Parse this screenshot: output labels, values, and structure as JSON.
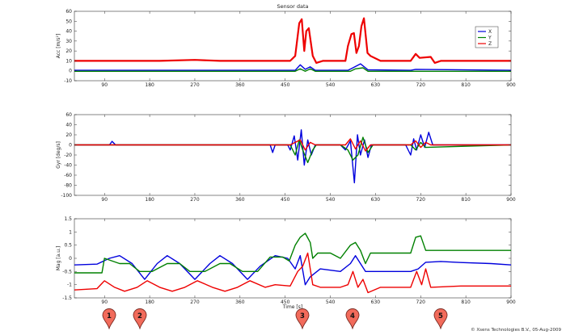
{
  "title": "Sensor data",
  "copyright": "© Xsens Technologies B.V., 05-Aug-2009",
  "xaxis": {
    "label": "Time [s]",
    "range": [
      30,
      900
    ],
    "ticks": [
      90,
      180,
      270,
      360,
      450,
      540,
      630,
      720,
      810,
      900
    ]
  },
  "colors": {
    "x": "#0000dd",
    "y": "#008000",
    "z": "#ee0000",
    "marker": "#f26b5b"
  },
  "legend": {
    "entries": [
      "X",
      "Y",
      "Z"
    ],
    "placement": "top-right"
  },
  "markers": [
    {
      "label": "1",
      "time": 100
    },
    {
      "label": "2",
      "time": 160
    },
    {
      "label": "3",
      "time": 485
    },
    {
      "label": "4",
      "time": 585
    },
    {
      "label": "5",
      "time": 760
    }
  ],
  "chart_data": [
    {
      "type": "line",
      "ylabel": "Acc [m/s²]",
      "ylim": [
        -10,
        60
      ],
      "yticks": [
        -10,
        0,
        10,
        20,
        30,
        40,
        50,
        60
      ],
      "grid": false,
      "series": [
        {
          "name": "X",
          "points": [
            [
              30,
              0.5
            ],
            [
              470,
              0.5
            ],
            [
              480,
              6
            ],
            [
              490,
              1.5
            ],
            [
              500,
              4
            ],
            [
              510,
              0.5
            ],
            [
              575,
              0.5
            ],
            [
              585,
              3
            ],
            [
              600,
              7
            ],
            [
              615,
              1
            ],
            [
              700,
              0.5
            ],
            [
              710,
              1.5
            ],
            [
              900,
              0.5
            ]
          ]
        },
        {
          "name": "Y",
          "points": [
            [
              30,
              -0.5
            ],
            [
              470,
              -0.5
            ],
            [
              480,
              2
            ],
            [
              490,
              -0.5
            ],
            [
              500,
              2
            ],
            [
              510,
              -0.5
            ],
            [
              580,
              -0.5
            ],
            [
              590,
              2
            ],
            [
              605,
              3
            ],
            [
              615,
              -0.5
            ],
            [
              900,
              -0.5
            ]
          ]
        },
        {
          "name": "Z",
          "points": [
            [
              30,
              10
            ],
            [
              200,
              10
            ],
            [
              270,
              11
            ],
            [
              320,
              10
            ],
            [
              460,
              10
            ],
            [
              470,
              15
            ],
            [
              478,
              48
            ],
            [
              483,
              52
            ],
            [
              488,
              20
            ],
            [
              492,
              40
            ],
            [
              497,
              43
            ],
            [
              505,
              15
            ],
            [
              512,
              8
            ],
            [
              525,
              10
            ],
            [
              570,
              10
            ],
            [
              575,
              25
            ],
            [
              582,
              37
            ],
            [
              587,
              38
            ],
            [
              592,
              18
            ],
            [
              597,
              25
            ],
            [
              602,
              45
            ],
            [
              607,
              53
            ],
            [
              614,
              18
            ],
            [
              620,
              15
            ],
            [
              640,
              10
            ],
            [
              700,
              10
            ],
            [
              710,
              17
            ],
            [
              718,
              13
            ],
            [
              740,
              14
            ],
            [
              748,
              8
            ],
            [
              760,
              10
            ],
            [
              900,
              10
            ]
          ]
        }
      ]
    },
    {
      "type": "line",
      "ylabel": "Gyr [deg/s]",
      "ylim": [
        -100,
        60
      ],
      "yticks": [
        -100,
        -80,
        -60,
        -40,
        -20,
        0,
        20,
        40,
        60
      ],
      "grid": false,
      "series": [
        {
          "name": "X",
          "points": [
            [
              30,
              0
            ],
            [
              100,
              0
            ],
            [
              105,
              7
            ],
            [
              112,
              0
            ],
            [
              420,
              0
            ],
            [
              425,
              -15
            ],
            [
              430,
              0
            ],
            [
              455,
              0
            ],
            [
              460,
              -10
            ],
            [
              468,
              18
            ],
            [
              475,
              -30
            ],
            [
              482,
              30
            ],
            [
              488,
              -40
            ],
            [
              495,
              10
            ],
            [
              502,
              -20
            ],
            [
              510,
              0
            ],
            [
              560,
              0
            ],
            [
              570,
              -10
            ],
            [
              580,
              8
            ],
            [
              588,
              -75
            ],
            [
              594,
              20
            ],
            [
              600,
              -20
            ],
            [
              608,
              10
            ],
            [
              615,
              -25
            ],
            [
              622,
              0
            ],
            [
              690,
              0
            ],
            [
              700,
              -20
            ],
            [
              706,
              12
            ],
            [
              712,
              -10
            ],
            [
              720,
              20
            ],
            [
              728,
              -5
            ],
            [
              736,
              25
            ],
            [
              744,
              0
            ],
            [
              900,
              0
            ]
          ]
        },
        {
          "name": "Y",
          "points": [
            [
              30,
              0
            ],
            [
              460,
              0
            ],
            [
              470,
              -20
            ],
            [
              478,
              10
            ],
            [
              485,
              -10
            ],
            [
              495,
              -35
            ],
            [
              505,
              -10
            ],
            [
              512,
              0
            ],
            [
              560,
              0
            ],
            [
              575,
              -10
            ],
            [
              585,
              -30
            ],
            [
              595,
              -20
            ],
            [
              605,
              15
            ],
            [
              615,
              -15
            ],
            [
              625,
              0
            ],
            [
              700,
              0
            ],
            [
              710,
              -10
            ],
            [
              720,
              5
            ],
            [
              730,
              -5
            ],
            [
              900,
              0
            ]
          ]
        },
        {
          "name": "Z",
          "points": [
            [
              30,
              0
            ],
            [
              460,
              0
            ],
            [
              470,
              5
            ],
            [
              480,
              10
            ],
            [
              490,
              -10
            ],
            [
              500,
              5
            ],
            [
              510,
              0
            ],
            [
              570,
              0
            ],
            [
              580,
              12
            ],
            [
              590,
              -8
            ],
            [
              600,
              8
            ],
            [
              610,
              -12
            ],
            [
              620,
              0
            ],
            [
              700,
              0
            ],
            [
              710,
              8
            ],
            [
              720,
              -5
            ],
            [
              730,
              5
            ],
            [
              740,
              0
            ],
            [
              900,
              0
            ]
          ]
        }
      ]
    },
    {
      "type": "line",
      "ylabel": "Mag [a.u.]",
      "xlabel": "Time [s]",
      "ylim": [
        -1.5,
        1.5
      ],
      "yticks": [
        -1.5,
        -1,
        -0.5,
        0,
        0.5,
        1,
        1.5
      ],
      "grid": false,
      "series": [
        {
          "name": "X",
          "points": [
            [
              30,
              -0.25
            ],
            [
              75,
              -0.22
            ],
            [
              100,
              0
            ],
            [
              120,
              0.1
            ],
            [
              145,
              -0.2
            ],
            [
              170,
              -0.8
            ],
            [
              195,
              -0.2
            ],
            [
              215,
              0.1
            ],
            [
              240,
              -0.2
            ],
            [
              270,
              -0.8
            ],
            [
              300,
              -0.2
            ],
            [
              320,
              0.1
            ],
            [
              345,
              -0.2
            ],
            [
              375,
              -0.8
            ],
            [
              400,
              -0.3
            ],
            [
              430,
              0.1
            ],
            [
              455,
              0
            ],
            [
              470,
              -0.4
            ],
            [
              480,
              0.1
            ],
            [
              490,
              -1.0
            ],
            [
              500,
              -0.7
            ],
            [
              520,
              -0.4
            ],
            [
              560,
              -0.5
            ],
            [
              580,
              -0.2
            ],
            [
              590,
              0.1
            ],
            [
              600,
              -0.2
            ],
            [
              610,
              -0.5
            ],
            [
              640,
              -0.5
            ],
            [
              700,
              -0.5
            ],
            [
              715,
              -0.4
            ],
            [
              730,
              -0.15
            ],
            [
              760,
              -0.12
            ],
            [
              800,
              -0.16
            ],
            [
              860,
              -0.2
            ],
            [
              900,
              -0.25
            ]
          ]
        },
        {
          "name": "Y",
          "points": [
            [
              30,
              -0.55
            ],
            [
              75,
              -0.55
            ],
            [
              85,
              -0.55
            ],
            [
              90,
              0
            ],
            [
              120,
              -0.2
            ],
            [
              140,
              -0.2
            ],
            [
              160,
              -0.5
            ],
            [
              185,
              -0.5
            ],
            [
              215,
              -0.2
            ],
            [
              240,
              -0.2
            ],
            [
              260,
              -0.5
            ],
            [
              290,
              -0.5
            ],
            [
              320,
              -0.2
            ],
            [
              340,
              -0.2
            ],
            [
              365,
              -0.5
            ],
            [
              395,
              -0.5
            ],
            [
              420,
              0.05
            ],
            [
              445,
              0.05
            ],
            [
              458,
              -0.1
            ],
            [
              470,
              0.5
            ],
            [
              480,
              0.8
            ],
            [
              490,
              0.95
            ],
            [
              500,
              0.6
            ],
            [
              505,
              0
            ],
            [
              515,
              0.2
            ],
            [
              540,
              0.2
            ],
            [
              560,
              0.0
            ],
            [
              580,
              0.5
            ],
            [
              590,
              0.6
            ],
            [
              600,
              0.3
            ],
            [
              610,
              -0.2
            ],
            [
              620,
              0.2
            ],
            [
              640,
              0.2
            ],
            [
              700,
              0.2
            ],
            [
              710,
              0.8
            ],
            [
              720,
              0.85
            ],
            [
              730,
              0.3
            ],
            [
              760,
              0.3
            ],
            [
              800,
              0.3
            ],
            [
              900,
              0.3
            ]
          ]
        },
        {
          "name": "Z",
          "points": [
            [
              30,
              -1.2
            ],
            [
              75,
              -1.15
            ],
            [
              90,
              -0.85
            ],
            [
              110,
              -1.1
            ],
            [
              130,
              -1.25
            ],
            [
              155,
              -1.1
            ],
            [
              175,
              -0.85
            ],
            [
              200,
              -1.1
            ],
            [
              225,
              -1.25
            ],
            [
              250,
              -1.1
            ],
            [
              275,
              -0.85
            ],
            [
              305,
              -1.1
            ],
            [
              330,
              -1.25
            ],
            [
              355,
              -1.1
            ],
            [
              380,
              -0.85
            ],
            [
              410,
              -1.1
            ],
            [
              430,
              -1.0
            ],
            [
              460,
              -1.05
            ],
            [
              475,
              -0.5
            ],
            [
              485,
              -0.3
            ],
            [
              495,
              0.2
            ],
            [
              505,
              -1.0
            ],
            [
              520,
              -1.1
            ],
            [
              560,
              -1.1
            ],
            [
              575,
              -1.0
            ],
            [
              585,
              -0.5
            ],
            [
              595,
              -1.1
            ],
            [
              605,
              -0.8
            ],
            [
              615,
              -1.3
            ],
            [
              640,
              -1.1
            ],
            [
              700,
              -1.1
            ],
            [
              712,
              -0.5
            ],
            [
              722,
              -1.0
            ],
            [
              730,
              -0.4
            ],
            [
              740,
              -1.1
            ],
            [
              800,
              -1.05
            ],
            [
              900,
              -1.05
            ]
          ]
        }
      ]
    }
  ]
}
